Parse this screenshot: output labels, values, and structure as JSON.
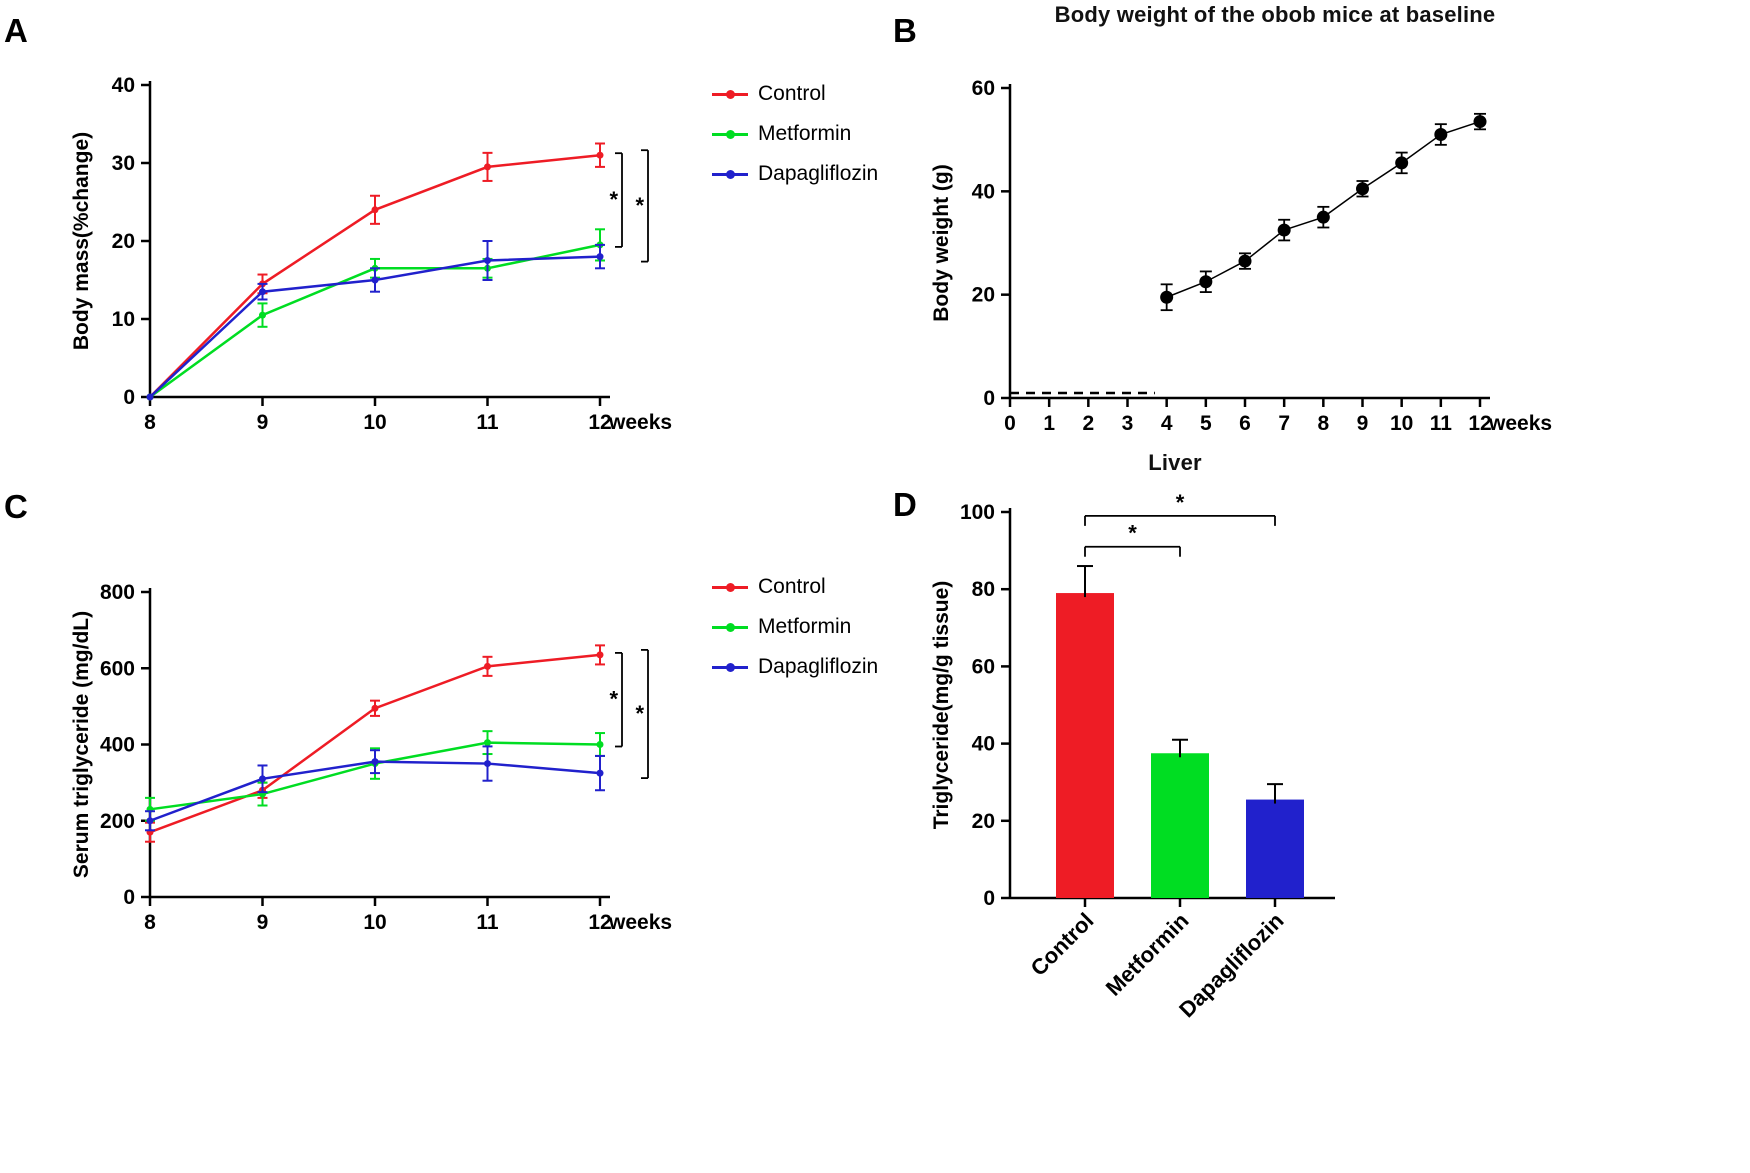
{
  "colors": {
    "control": "#ee1c25",
    "metformin": "#00dd22",
    "dapagliflozin": "#2121cc",
    "axis": "#000000",
    "scatter_point": "#000000"
  },
  "panels": {
    "a": {
      "letter": "A"
    },
    "b": {
      "letter": "B"
    },
    "c": {
      "letter": "C"
    },
    "d": {
      "letter": "D"
    }
  },
  "legend": {
    "items": [
      {
        "name": "Control",
        "color_key": "control"
      },
      {
        "name": "Metformin",
        "color_key": "metformin"
      },
      {
        "name": "Dapagliflozin",
        "color_key": "dapagliflozin"
      }
    ]
  },
  "chart_data": [
    {
      "id": "A",
      "type": "line",
      "ylabel": "Body mass(%change)",
      "x_unit": "weeks",
      "x": [
        8,
        9,
        10,
        11,
        12
      ],
      "ylim": [
        0,
        40
      ],
      "yticks": [
        0,
        10,
        20,
        30,
        40
      ],
      "series": [
        {
          "name": "Control",
          "color": "control",
          "values": [
            0,
            14.5,
            24,
            29.5,
            31
          ],
          "errors": [
            0,
            1.2,
            1.8,
            1.8,
            1.5
          ]
        },
        {
          "name": "Metformin",
          "color": "metformin",
          "values": [
            0,
            10.5,
            16.5,
            16.5,
            19.5
          ],
          "errors": [
            0,
            1.5,
            1.2,
            1.2,
            2
          ]
        },
        {
          "name": "Dapagliflozin",
          "color": "dapagliflozin",
          "values": [
            0,
            13.5,
            15,
            17.5,
            18
          ],
          "errors": [
            0,
            1,
            1.5,
            2.5,
            1.5
          ]
        }
      ],
      "significance": [
        {
          "a": "Control",
          "b": "Metformin",
          "label": "*"
        },
        {
          "a": "Control",
          "b": "Dapagliflozin",
          "label": "*"
        }
      ]
    },
    {
      "id": "B",
      "type": "scatter",
      "title": "Body weight of the obob mice at baseline",
      "ylabel": "Body weight (g)",
      "x_unit": "weeks",
      "xlim": [
        0,
        12
      ],
      "xticks": [
        0,
        1,
        2,
        3,
        4,
        5,
        6,
        7,
        8,
        9,
        10,
        11,
        12
      ],
      "ylim": [
        0,
        60
      ],
      "yticks": [
        0,
        20,
        40,
        60
      ],
      "x": [
        4,
        5,
        6,
        7,
        8,
        9,
        10,
        11,
        12
      ],
      "values": [
        19.5,
        22.5,
        26.5,
        32.5,
        35,
        40.5,
        45.5,
        51,
        53.5
      ],
      "errors": [
        2.5,
        2,
        1.5,
        2,
        2,
        1.5,
        2,
        2,
        1.5
      ],
      "dashed_baseline": {
        "from_x": 0,
        "to_x": 3.7,
        "y": 0
      }
    },
    {
      "id": "C",
      "type": "line",
      "ylabel": "Serum triglyceride (mg/dL)",
      "x_unit": "weeks",
      "x": [
        8,
        9,
        10,
        11,
        12
      ],
      "ylim": [
        0,
        800
      ],
      "yticks": [
        0,
        200,
        400,
        600,
        800
      ],
      "series": [
        {
          "name": "Control",
          "color": "control",
          "values": [
            170,
            280,
            495,
            605,
            635
          ],
          "errors": [
            25,
            20,
            20,
            25,
            25
          ]
        },
        {
          "name": "Metformin",
          "color": "metformin",
          "values": [
            230,
            270,
            350,
            405,
            400
          ],
          "errors": [
            30,
            30,
            40,
            30,
            30
          ]
        },
        {
          "name": "Dapagliflozin",
          "color": "dapagliflozin",
          "values": [
            200,
            310,
            355,
            350,
            325
          ],
          "errors": [
            25,
            35,
            30,
            45,
            45
          ]
        }
      ],
      "significance": [
        {
          "a": "Control",
          "b": "Metformin",
          "label": "*"
        },
        {
          "a": "Control",
          "b": "Dapagliflozin",
          "label": "*"
        }
      ]
    },
    {
      "id": "D",
      "type": "bar",
      "heading": "Liver",
      "ylabel": "Triglyceride(mg/g tissue)",
      "categories": [
        "Control",
        "Metformin",
        "Dapagliflozin"
      ],
      "values": [
        79,
        37.5,
        25.5
      ],
      "errors": [
        7,
        3.5,
        4
      ],
      "bar_colors": [
        "control",
        "metformin",
        "dapagliflozin"
      ],
      "ylim": [
        0,
        100
      ],
      "yticks": [
        0,
        20,
        40,
        60,
        80,
        100
      ],
      "significance": [
        {
          "a": 0,
          "b": 1,
          "label": "*",
          "height": 91
        },
        {
          "a": 0,
          "b": 2,
          "label": "*",
          "height": 99
        }
      ]
    }
  ]
}
